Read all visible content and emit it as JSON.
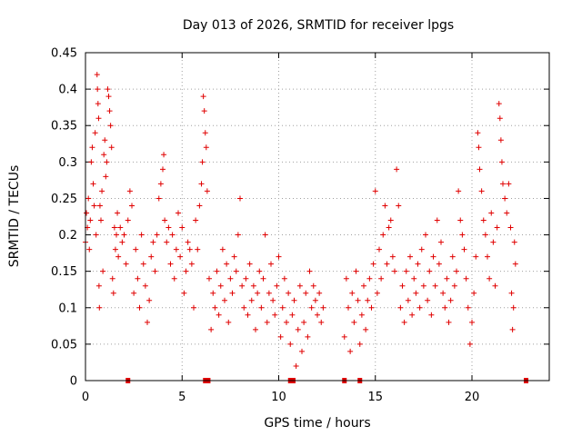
{
  "chart_data": {
    "type": "scatter",
    "title": "Day 013 of 2026, SRMTID for receiver lpgs",
    "xlabel": "GPS time / hours",
    "ylabel": "SRMTID / TECUs",
    "xlim": [
      0,
      24
    ],
    "ylim": [
      0,
      0.45
    ],
    "x_ticks": [
      0,
      5,
      10,
      15,
      20
    ],
    "x_tick_labels": [
      "0",
      "5",
      "10",
      "15",
      "20"
    ],
    "y_ticks": [
      0,
      0.05,
      0.1,
      0.15,
      0.2,
      0.25,
      0.3,
      0.35,
      0.4,
      0.45
    ],
    "y_tick_labels": [
      "0",
      "0.05",
      "0.1",
      "0.15",
      "0.2",
      "0.25",
      "0.3",
      "0.35",
      "0.4",
      "0.45"
    ],
    "grid": true,
    "marker": "+",
    "color": "#e00000",
    "series": [
      {
        "name": "SRMTID",
        "points": [
          [
            0.0,
            0.19
          ],
          [
            0.05,
            0.23
          ],
          [
            0.1,
            0.21
          ],
          [
            0.15,
            0.25
          ],
          [
            0.2,
            0.18
          ],
          [
            0.25,
            0.22
          ],
          [
            0.3,
            0.3
          ],
          [
            0.35,
            0.32
          ],
          [
            0.4,
            0.27
          ],
          [
            0.45,
            0.24
          ],
          [
            0.5,
            0.34
          ],
          [
            0.55,
            0.2
          ],
          [
            0.6,
            0.42
          ],
          [
            0.62,
            0.4
          ],
          [
            0.65,
            0.38
          ],
          [
            0.68,
            0.36
          ],
          [
            0.7,
            0.13
          ],
          [
            0.72,
            0.1
          ],
          [
            0.75,
            0.24
          ],
          [
            0.8,
            0.22
          ],
          [
            0.85,
            0.26
          ],
          [
            0.9,
            0.15
          ],
          [
            0.95,
            0.31
          ],
          [
            1.0,
            0.33
          ],
          [
            1.05,
            0.28
          ],
          [
            1.1,
            0.3
          ],
          [
            1.15,
            0.4
          ],
          [
            1.2,
            0.39
          ],
          [
            1.25,
            0.37
          ],
          [
            1.3,
            0.35
          ],
          [
            1.35,
            0.32
          ],
          [
            1.4,
            0.14
          ],
          [
            1.45,
            0.12
          ],
          [
            1.5,
            0.21
          ],
          [
            1.55,
            0.18
          ],
          [
            1.6,
            0.2
          ],
          [
            1.65,
            0.23
          ],
          [
            1.7,
            0.17
          ],
          [
            1.8,
            0.21
          ],
          [
            1.9,
            0.19
          ],
          [
            2.0,
            0.2
          ],
          [
            2.1,
            0.16
          ],
          [
            2.2,
            0.22
          ],
          [
            2.3,
            0.26
          ],
          [
            2.4,
            0.24
          ],
          [
            2.5,
            0.12
          ],
          [
            2.6,
            0.18
          ],
          [
            2.7,
            0.14
          ],
          [
            2.8,
            0.1
          ],
          [
            2.9,
            0.2
          ],
          [
            3.0,
            0.16
          ],
          [
            3.1,
            0.13
          ],
          [
            3.2,
            0.08
          ],
          [
            3.3,
            0.11
          ],
          [
            3.4,
            0.17
          ],
          [
            3.5,
            0.19
          ],
          [
            3.6,
            0.15
          ],
          [
            3.7,
            0.2
          ],
          [
            3.8,
            0.25
          ],
          [
            3.9,
            0.27
          ],
          [
            4.0,
            0.29
          ],
          [
            4.05,
            0.31
          ],
          [
            4.1,
            0.22
          ],
          [
            4.2,
            0.19
          ],
          [
            4.3,
            0.21
          ],
          [
            4.4,
            0.16
          ],
          [
            4.5,
            0.2
          ],
          [
            4.6,
            0.14
          ],
          [
            4.7,
            0.18
          ],
          [
            4.8,
            0.23
          ],
          [
            4.9,
            0.17
          ],
          [
            5.0,
            0.21
          ],
          [
            5.1,
            0.12
          ],
          [
            5.2,
            0.15
          ],
          [
            5.3,
            0.19
          ],
          [
            5.4,
            0.18
          ],
          [
            5.5,
            0.16
          ],
          [
            5.6,
            0.1
          ],
          [
            5.7,
            0.22
          ],
          [
            5.8,
            0.18
          ],
          [
            5.9,
            0.24
          ],
          [
            6.0,
            0.27
          ],
          [
            6.05,
            0.3
          ],
          [
            6.1,
            0.39
          ],
          [
            6.15,
            0.37
          ],
          [
            6.2,
            0.34
          ],
          [
            6.25,
            0.32
          ],
          [
            6.3,
            0.26
          ],
          [
            6.4,
            0.14
          ],
          [
            6.5,
            0.07
          ],
          [
            6.6,
            0.12
          ],
          [
            6.7,
            0.1
          ],
          [
            6.8,
            0.15
          ],
          [
            6.9,
            0.09
          ],
          [
            7.0,
            0.13
          ],
          [
            7.1,
            0.18
          ],
          [
            7.2,
            0.11
          ],
          [
            7.3,
            0.16
          ],
          [
            7.4,
            0.08
          ],
          [
            7.5,
            0.14
          ],
          [
            7.6,
            0.12
          ],
          [
            7.7,
            0.17
          ],
          [
            7.8,
            0.15
          ],
          [
            7.9,
            0.2
          ],
          [
            8.0,
            0.25
          ],
          [
            8.1,
            0.13
          ],
          [
            8.2,
            0.1
          ],
          [
            8.3,
            0.14
          ],
          [
            8.4,
            0.09
          ],
          [
            8.5,
            0.16
          ],
          [
            8.6,
            0.11
          ],
          [
            8.7,
            0.13
          ],
          [
            8.8,
            0.07
          ],
          [
            8.9,
            0.12
          ],
          [
            9.0,
            0.15
          ],
          [
            9.1,
            0.1
          ],
          [
            9.2,
            0.14
          ],
          [
            9.3,
            0.2
          ],
          [
            9.4,
            0.08
          ],
          [
            9.5,
            0.12
          ],
          [
            9.6,
            0.16
          ],
          [
            9.7,
            0.11
          ],
          [
            9.8,
            0.09
          ],
          [
            9.9,
            0.13
          ],
          [
            10.0,
            0.17
          ],
          [
            10.1,
            0.06
          ],
          [
            10.2,
            0.1
          ],
          [
            10.3,
            0.14
          ],
          [
            10.4,
            0.08
          ],
          [
            10.5,
            0.12
          ],
          [
            10.6,
            0.05
          ],
          [
            10.7,
            0.09
          ],
          [
            10.8,
            0.11
          ],
          [
            10.9,
            0.02
          ],
          [
            11.0,
            0.07
          ],
          [
            11.1,
            0.13
          ],
          [
            11.2,
            0.04
          ],
          [
            11.3,
            0.08
          ],
          [
            11.4,
            0.12
          ],
          [
            11.5,
            0.06
          ],
          [
            11.6,
            0.15
          ],
          [
            11.7,
            0.1
          ],
          [
            11.8,
            0.13
          ],
          [
            11.9,
            0.11
          ],
          [
            12.0,
            0.09
          ],
          [
            12.1,
            0.12
          ],
          [
            12.2,
            0.08
          ],
          [
            12.3,
            0.1
          ],
          [
            13.4,
            0.06
          ],
          [
            13.5,
            0.14
          ],
          [
            13.6,
            0.1
          ],
          [
            13.7,
            0.04
          ],
          [
            13.8,
            0.12
          ],
          [
            13.9,
            0.08
          ],
          [
            14.0,
            0.15
          ],
          [
            14.1,
            0.11
          ],
          [
            14.2,
            0.05
          ],
          [
            14.3,
            0.09
          ],
          [
            14.4,
            0.13
          ],
          [
            14.5,
            0.07
          ],
          [
            14.6,
            0.11
          ],
          [
            14.7,
            0.14
          ],
          [
            14.8,
            0.1
          ],
          [
            14.9,
            0.16
          ],
          [
            15.0,
            0.26
          ],
          [
            15.1,
            0.12
          ],
          [
            15.2,
            0.18
          ],
          [
            15.3,
            0.14
          ],
          [
            15.4,
            0.2
          ],
          [
            15.5,
            0.24
          ],
          [
            15.6,
            0.16
          ],
          [
            15.7,
            0.21
          ],
          [
            15.8,
            0.22
          ],
          [
            15.9,
            0.17
          ],
          [
            16.0,
            0.15
          ],
          [
            16.1,
            0.29
          ],
          [
            16.2,
            0.24
          ],
          [
            16.3,
            0.1
          ],
          [
            16.4,
            0.13
          ],
          [
            16.5,
            0.08
          ],
          [
            16.6,
            0.15
          ],
          [
            16.7,
            0.11
          ],
          [
            16.8,
            0.17
          ],
          [
            16.9,
            0.09
          ],
          [
            17.0,
            0.14
          ],
          [
            17.1,
            0.12
          ],
          [
            17.2,
            0.16
          ],
          [
            17.3,
            0.1
          ],
          [
            17.4,
            0.18
          ],
          [
            17.5,
            0.13
          ],
          [
            17.6,
            0.2
          ],
          [
            17.7,
            0.11
          ],
          [
            17.8,
            0.15
          ],
          [
            17.9,
            0.09
          ],
          [
            18.0,
            0.17
          ],
          [
            18.1,
            0.13
          ],
          [
            18.2,
            0.22
          ],
          [
            18.3,
            0.16
          ],
          [
            18.4,
            0.19
          ],
          [
            18.5,
            0.12
          ],
          [
            18.6,
            0.1
          ],
          [
            18.7,
            0.14
          ],
          [
            18.8,
            0.08
          ],
          [
            18.9,
            0.11
          ],
          [
            19.0,
            0.17
          ],
          [
            19.1,
            0.13
          ],
          [
            19.2,
            0.15
          ],
          [
            19.3,
            0.26
          ],
          [
            19.4,
            0.22
          ],
          [
            19.5,
            0.2
          ],
          [
            19.6,
            0.18
          ],
          [
            19.7,
            0.14
          ],
          [
            19.8,
            0.1
          ],
          [
            19.9,
            0.05
          ],
          [
            20.0,
            0.08
          ],
          [
            20.1,
            0.12
          ],
          [
            20.2,
            0.17
          ],
          [
            20.3,
            0.34
          ],
          [
            20.35,
            0.32
          ],
          [
            20.4,
            0.29
          ],
          [
            20.5,
            0.26
          ],
          [
            20.6,
            0.22
          ],
          [
            20.7,
            0.2
          ],
          [
            20.8,
            0.17
          ],
          [
            20.9,
            0.14
          ],
          [
            21.0,
            0.23
          ],
          [
            21.1,
            0.19
          ],
          [
            21.2,
            0.13
          ],
          [
            21.3,
            0.21
          ],
          [
            21.4,
            0.38
          ],
          [
            21.45,
            0.36
          ],
          [
            21.5,
            0.33
          ],
          [
            21.55,
            0.3
          ],
          [
            21.6,
            0.27
          ],
          [
            21.7,
            0.25
          ],
          [
            21.8,
            0.23
          ],
          [
            21.9,
            0.27
          ],
          [
            22.0,
            0.21
          ],
          [
            22.05,
            0.12
          ],
          [
            22.1,
            0.07
          ],
          [
            22.15,
            0.1
          ],
          [
            22.2,
            0.19
          ],
          [
            22.25,
            0.16
          ]
        ]
      }
    ],
    "gap_markers_x": [
      2.2,
      6.2,
      6.35,
      10.6,
      10.75,
      13.4,
      14.2,
      22.8
    ]
  }
}
